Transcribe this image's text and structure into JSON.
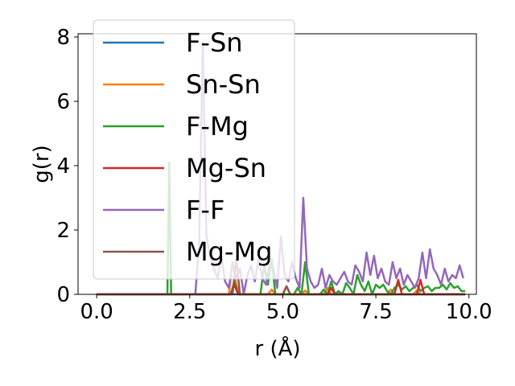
{
  "chart_data": {
    "type": "line",
    "title": "",
    "xlabel": "r (Å)",
    "ylabel": "g(r)",
    "xlim": [
      -0.5,
      10.2
    ],
    "ylim": [
      0,
      8.1
    ],
    "xticks": [
      0.0,
      2.5,
      5.0,
      7.5,
      10.0
    ],
    "xtick_labels": [
      "0.0",
      "2.5",
      "5.0",
      "7.5",
      "10.0"
    ],
    "yticks": [
      0,
      2,
      4,
      6,
      8
    ],
    "ytick_labels": [
      "0",
      "2",
      "4",
      "6",
      "8"
    ],
    "grid": false,
    "legend_position": "top-left",
    "series": [
      {
        "name": "F-Sn",
        "color": "#1f77b4",
        "x": [
          0,
          9.9
        ],
        "y": [
          0,
          0
        ]
      },
      {
        "name": "Sn-Sn",
        "color": "#ff7f0e",
        "x": [
          0,
          3.55,
          3.65,
          3.75,
          3.85,
          4.6,
          4.7,
          4.8,
          5.5,
          5.6,
          5.7,
          6.1,
          6.2,
          6.3,
          7.8,
          7.9,
          8.0,
          8.5,
          8.6,
          8.7,
          9.9
        ],
        "y": [
          0,
          0,
          1.0,
          0.3,
          0,
          0,
          0.15,
          0,
          0,
          0.12,
          0,
          0,
          0.2,
          0,
          0,
          0.15,
          0,
          0,
          0.12,
          0,
          0
        ]
      },
      {
        "name": "F-Mg",
        "color": "#2ca02c",
        "x": [
          0,
          1.8,
          1.9,
          1.95,
          2.0,
          2.1,
          3.6,
          3.7,
          3.8,
          4.4,
          4.5,
          4.6,
          4.7,
          4.8,
          5.3,
          5.4,
          5.5,
          5.6,
          5.7,
          6.0,
          6.1,
          6.2,
          6.3,
          6.4,
          6.5,
          6.6,
          6.7,
          6.8,
          6.9,
          7.0,
          7.1,
          7.2,
          7.3,
          7.4,
          7.5,
          7.6,
          7.7,
          7.8,
          7.9,
          8.0,
          8.1,
          8.2,
          8.3,
          8.4,
          8.5,
          8.6,
          8.7,
          8.8,
          8.9,
          9.0,
          9.1,
          9.2,
          9.3,
          9.4,
          9.5,
          9.6,
          9.7,
          9.8,
          9.9
        ],
        "y": [
          0,
          0,
          0,
          4.1,
          0,
          0,
          0,
          0.4,
          0,
          0,
          0.9,
          0.3,
          1.1,
          0,
          0,
          0.2,
          0,
          1.0,
          0,
          0,
          0.15,
          0,
          0.4,
          0,
          0.1,
          0,
          0.35,
          0.2,
          0,
          0.6,
          0.3,
          0.1,
          0.4,
          0,
          0.3,
          0.2,
          0.3,
          0.1,
          0,
          0.2,
          0.3,
          0.15,
          0.25,
          0.1,
          0.2,
          0.3,
          0.1,
          0.2,
          0.25,
          0.1,
          0.2,
          0.2,
          0.3,
          0.15,
          0.35,
          0.2,
          0.25,
          0.1,
          0.1
        ]
      },
      {
        "name": "Mg-Sn",
        "color": "#d62728",
        "x": [
          0,
          3.6,
          3.7,
          3.8,
          5.0,
          5.1,
          5.2,
          6.2,
          6.3,
          6.4,
          8.0,
          8.1,
          8.2,
          8.6,
          8.7,
          8.8,
          9.9
        ],
        "y": [
          0,
          0,
          0.3,
          0,
          0,
          0.25,
          0,
          0,
          0.2,
          0,
          0,
          0.45,
          0,
          0,
          0.45,
          0,
          0
        ]
      },
      {
        "name": "F-F",
        "color": "#9467bd",
        "x": [
          0,
          2.65,
          2.75,
          2.85,
          2.95,
          3.05,
          3.15,
          3.25,
          3.35,
          3.45,
          3.55,
          3.65,
          3.75,
          3.85,
          3.95,
          4.05,
          4.15,
          4.25,
          4.35,
          4.45,
          4.55,
          4.65,
          4.75,
          4.85,
          4.95,
          5.05,
          5.15,
          5.25,
          5.35,
          5.45,
          5.55,
          5.65,
          5.75,
          5.85,
          5.95,
          6.05,
          6.15,
          6.25,
          6.35,
          6.45,
          6.55,
          6.65,
          6.75,
          6.85,
          6.95,
          7.05,
          7.15,
          7.25,
          7.35,
          7.45,
          7.55,
          7.65,
          7.75,
          7.85,
          7.95,
          8.05,
          8.15,
          8.25,
          8.35,
          8.45,
          8.55,
          8.65,
          8.75,
          8.85,
          8.95,
          9.05,
          9.15,
          9.25,
          9.35,
          9.45,
          9.55,
          9.65,
          9.75,
          9.85
        ],
        "y": [
          0,
          0,
          1.5,
          7.8,
          1.8,
          1.2,
          0.8,
          0.5,
          1.2,
          0.4,
          0.2,
          1.0,
          0.5,
          0.8,
          0,
          0.6,
          0.9,
          0.4,
          1.1,
          0.5,
          0.3,
          1.0,
          0.8,
          0.2,
          1.8,
          0.6,
          0.4,
          1.0,
          0.5,
          0.2,
          3.0,
          0.8,
          0.4,
          0.2,
          0.3,
          0.8,
          0.2,
          0.6,
          0.4,
          0.3,
          0.5,
          0.7,
          0.4,
          0.3,
          0.9,
          0.7,
          0.4,
          1.3,
          0.6,
          1.2,
          0.5,
          0.8,
          0.4,
          0.3,
          1.0,
          0.5,
          0.8,
          0.3,
          0.6,
          0.4,
          0.2,
          0.5,
          1.3,
          0.5,
          1.4,
          0.8,
          0.6,
          0.3,
          0.8,
          0.4,
          0.6,
          0.5,
          0.9,
          0.5
        ]
      },
      {
        "name": "Mg-Mg",
        "color": "#8c564b",
        "x": [
          0,
          3.65,
          3.75,
          3.85,
          5.0,
          5.1,
          5.2,
          9.9
        ],
        "y": [
          0,
          0,
          1.1,
          0,
          0,
          0.25,
          0,
          0
        ]
      }
    ]
  }
}
